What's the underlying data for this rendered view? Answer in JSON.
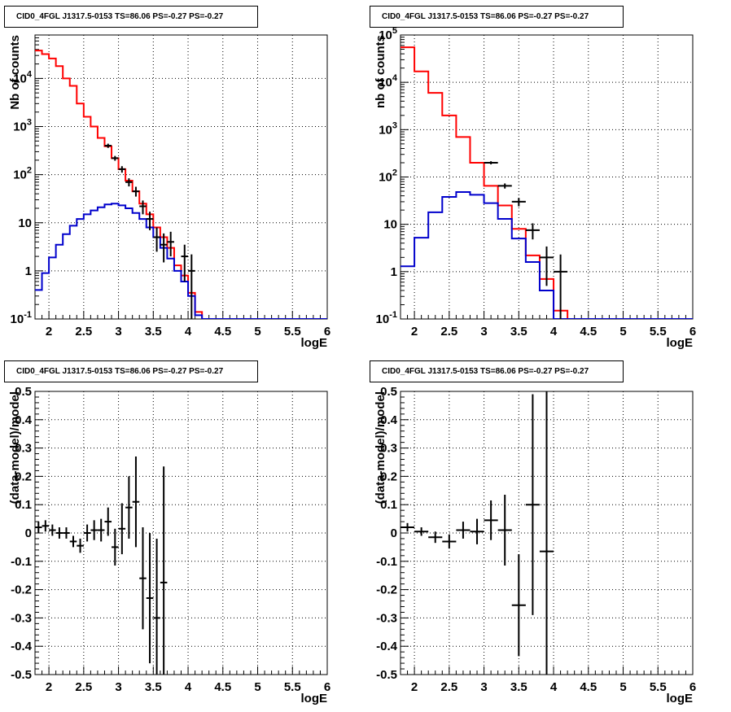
{
  "chart_data": [
    {
      "type": "histogram",
      "title": "CID0_4FGL J1317.5-0153 TS=86.06 PS=-0.27 PS=-0.27",
      "xlabel": "logE",
      "ylabel": "Nb of counts",
      "xlim": [
        1.8,
        6.0
      ],
      "ylim": [
        0.1,
        80000
      ],
      "yscale": "log",
      "grid": true,
      "xticks": [
        "2",
        "2.5",
        "3",
        "3.5",
        "4",
        "4.5",
        "5",
        "5.5",
        "6"
      ],
      "yticks": [
        "10^{-1}",
        "1",
        "10",
        "10^{2}",
        "10^{3}",
        "10^{4}"
      ],
      "bin_edges": [
        1.8,
        1.9,
        2.0,
        2.1,
        2.2,
        2.3,
        2.4,
        2.5,
        2.6,
        2.7,
        2.8,
        2.9,
        3.0,
        3.1,
        3.2,
        3.3,
        3.4,
        3.5,
        3.6,
        3.7,
        3.8,
        3.9,
        4.0,
        4.1,
        4.2,
        4.3,
        4.4,
        4.5,
        4.6,
        4.7,
        4.8,
        4.9,
        5.0,
        5.1,
        5.2,
        5.3,
        5.4,
        5.5,
        5.6,
        5.7,
        5.8,
        5.9,
        6.0
      ],
      "series": [
        {
          "color": "#ff0000",
          "values": [
            38000,
            32000,
            26000,
            18000,
            10000,
            7000,
            3000,
            1600,
            1000,
            580,
            390,
            220,
            130,
            75,
            45,
            25,
            15,
            8,
            5,
            3,
            1.3,
            0.8,
            0.35,
            0.14,
            0.1,
            0.1,
            0.1,
            0.1,
            0.1,
            0.1,
            0.1,
            0.1,
            0.1,
            0.1,
            0.1,
            0.1,
            0.1,
            0.1,
            0.1,
            0.1,
            0.1,
            0.1
          ]
        },
        {
          "color": "#0000cc",
          "values": [
            0.4,
            0.9,
            1.9,
            3.5,
            5.8,
            8.7,
            12,
            15,
            18,
            21,
            24,
            25,
            23,
            20,
            16,
            12,
            8,
            5,
            3,
            1.8,
            1,
            0.6,
            0.3,
            0.12,
            0.1,
            0.1,
            0.1,
            0.1,
            0.1,
            0.1,
            0.1,
            0.1,
            0.1,
            0.1,
            0.1,
            0.1,
            0.1,
            0.1,
            0.1,
            0.1,
            0.1,
            0.1
          ]
        }
      ],
      "data_points": [
        {
          "x": 2.85,
          "y": 400,
          "lo": 360,
          "hi": 440
        },
        {
          "x": 2.95,
          "y": 220,
          "lo": 195,
          "hi": 245
        },
        {
          "x": 3.05,
          "y": 130,
          "lo": 110,
          "hi": 150
        },
        {
          "x": 3.15,
          "y": 70,
          "lo": 57,
          "hi": 84
        },
        {
          "x": 3.25,
          "y": 45,
          "lo": 35,
          "hi": 56
        },
        {
          "x": 3.35,
          "y": 22,
          "lo": 15,
          "hi": 29
        },
        {
          "x": 3.45,
          "y": 12,
          "lo": 7,
          "hi": 17
        },
        {
          "x": 3.55,
          "y": 5,
          "lo": 2.5,
          "hi": 8
        },
        {
          "x": 3.65,
          "y": 3.5,
          "lo": 1.5,
          "hi": 6
        },
        {
          "x": 3.75,
          "y": 4,
          "lo": 2,
          "hi": 6.5
        },
        {
          "x": 3.95,
          "y": 2,
          "lo": 0.6,
          "hi": 3.5
        },
        {
          "x": 4.05,
          "y": 1,
          "lo": 0.1,
          "hi": 2.2
        }
      ]
    },
    {
      "type": "histogram",
      "title": "CID0_4FGL J1317.5-0153 TS=86.06 PS=-0.27 PS=-0.27",
      "xlabel": "logE",
      "ylabel": "nb of counts",
      "xlim": [
        1.8,
        6.0
      ],
      "ylim": [
        0.1,
        100000
      ],
      "yscale": "log",
      "grid": true,
      "xticks": [
        "2",
        "2.5",
        "3",
        "3.5",
        "4",
        "4.5",
        "5",
        "5.5",
        "6"
      ],
      "yticks": [
        "10^{-1}",
        "1",
        "10",
        "10^{2}",
        "10^{3}",
        "10^{4}",
        "10^{5}"
      ],
      "bin_edges": [
        1.8,
        2.0,
        2.2,
        2.4,
        2.6,
        2.8,
        3.0,
        3.2,
        3.4,
        3.6,
        3.8,
        4.0,
        4.2,
        4.4,
        4.6,
        4.8,
        5.0,
        5.2,
        5.4,
        5.6,
        5.8,
        6.0
      ],
      "series": [
        {
          "color": "#ff0000",
          "values": [
            55000,
            17000,
            6000,
            2000,
            700,
            200,
            65,
            25,
            8,
            2.2,
            0.7,
            0.15,
            0.1,
            0.1,
            0.1,
            0.1,
            0.1,
            0.1,
            0.1,
            0.1,
            0.1
          ]
        },
        {
          "color": "#0000cc",
          "values": [
            1.3,
            5.2,
            18,
            38,
            48,
            42,
            28,
            13,
            5,
            1.6,
            0.4,
            0.1,
            0.1,
            0.1,
            0.1,
            0.1,
            0.1,
            0.1,
            0.1,
            0.1,
            0.1
          ]
        }
      ],
      "data_points": [
        {
          "x": 3.1,
          "y": 200,
          "lo": 185,
          "hi": 215
        },
        {
          "x": 3.3,
          "y": 65,
          "lo": 57,
          "hi": 73
        },
        {
          "x": 3.5,
          "y": 30,
          "lo": 24,
          "hi": 36
        },
        {
          "x": 3.7,
          "y": 7.5,
          "lo": 4.8,
          "hi": 10.5
        },
        {
          "x": 3.9,
          "y": 2,
          "lo": 0.5,
          "hi": 3.4
        },
        {
          "x": 4.1,
          "y": 1,
          "lo": 0.1,
          "hi": 2.3
        }
      ]
    },
    {
      "type": "scatter",
      "title": "CID0_4FGL J1317.5-0153 TS=86.06 PS=-0.27 PS=-0.27",
      "xlabel": "logE",
      "ylabel": "(data-model)/model",
      "xlim": [
        1.8,
        6.0
      ],
      "ylim": [
        -0.5,
        0.5
      ],
      "grid": true,
      "xticks": [
        "2",
        "2.5",
        "3",
        "3.5",
        "4",
        "4.5",
        "5",
        "5.5",
        "6"
      ],
      "yticks": [
        "-0.5",
        "-0.4",
        "-0.3",
        "-0.2",
        "-0.1",
        "0",
        "0.1",
        "0.2",
        "0.3",
        "0.4",
        "0.5"
      ],
      "points": [
        {
          "x": 1.85,
          "y": 0.02,
          "err": 0.02
        },
        {
          "x": 1.95,
          "y": 0.025,
          "err": 0.02
        },
        {
          "x": 2.05,
          "y": 0.01,
          "err": 0.02
        },
        {
          "x": 2.15,
          "y": 0.0,
          "err": 0.02
        },
        {
          "x": 2.25,
          "y": 0.0,
          "err": 0.02
        },
        {
          "x": 2.35,
          "y": -0.03,
          "err": 0.02
        },
        {
          "x": 2.45,
          "y": -0.045,
          "err": 0.025
        },
        {
          "x": 2.55,
          "y": 0.0,
          "err": 0.03
        },
        {
          "x": 2.65,
          "y": 0.01,
          "err": 0.035
        },
        {
          "x": 2.75,
          "y": 0.01,
          "err": 0.04
        },
        {
          "x": 2.85,
          "y": 0.04,
          "err": 0.05
        },
        {
          "x": 2.95,
          "y": -0.05,
          "err": 0.065
        },
        {
          "x": 3.05,
          "y": 0.015,
          "err": 0.09
        },
        {
          "x": 3.15,
          "y": 0.09,
          "err": 0.11
        },
        {
          "x": 3.25,
          "y": 0.11,
          "err": 0.16
        },
        {
          "x": 3.35,
          "y": -0.16,
          "err": 0.18
        },
        {
          "x": 3.45,
          "y": -0.23,
          "err": 0.23
        },
        {
          "x": 3.55,
          "y": -0.3,
          "err": 0.28
        },
        {
          "x": 3.65,
          "y": -0.175,
          "err": 0.41
        }
      ]
    },
    {
      "type": "scatter",
      "title": "CID0_4FGL J1317.5-0153 TS=86.06 PS=-0.27 PS=-0.27",
      "xlabel": "logE",
      "ylabel": "(data-model)/model",
      "xlim": [
        1.8,
        6.0
      ],
      "ylim": [
        -0.5,
        0.5
      ],
      "grid": true,
      "xticks": [
        "2",
        "2.5",
        "3",
        "3.5",
        "4",
        "4.5",
        "5",
        "5.5",
        "6"
      ],
      "yticks": [
        "-0.5",
        "-0.4",
        "-0.3",
        "-0.2",
        "-0.1",
        "0",
        "0.1",
        "0.2",
        "0.3",
        "0.4",
        "0.5"
      ],
      "points": [
        {
          "x": 1.9,
          "y": 0.02,
          "err": 0.015
        },
        {
          "x": 2.1,
          "y": 0.005,
          "err": 0.015
        },
        {
          "x": 2.3,
          "y": -0.015,
          "err": 0.02
        },
        {
          "x": 2.5,
          "y": -0.03,
          "err": 0.025
        },
        {
          "x": 2.7,
          "y": 0.01,
          "err": 0.03
        },
        {
          "x": 2.9,
          "y": 0.005,
          "err": 0.045
        },
        {
          "x": 3.1,
          "y": 0.045,
          "err": 0.07
        },
        {
          "x": 3.3,
          "y": 0.01,
          "err": 0.125
        },
        {
          "x": 3.5,
          "y": -0.255,
          "err": 0.18
        },
        {
          "x": 3.7,
          "y": 0.1,
          "err": 0.39
        },
        {
          "x": 3.9,
          "y": -0.065,
          "err": 0.6
        }
      ]
    }
  ]
}
